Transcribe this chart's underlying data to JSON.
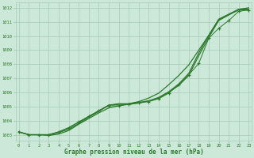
{
  "xlabel": "Graphe pression niveau de la mer (hPa)",
  "x": [
    0,
    1,
    2,
    3,
    4,
    5,
    6,
    7,
    8,
    9,
    10,
    11,
    12,
    13,
    14,
    15,
    16,
    17,
    18,
    19,
    20,
    21,
    22,
    23
  ],
  "line1": [
    1003.2,
    1003.0,
    1003.0,
    1003.0,
    1003.2,
    1003.5,
    1003.9,
    1004.3,
    1004.7,
    1005.1,
    1005.2,
    1005.2,
    1005.3,
    1005.4,
    1005.6,
    1006.0,
    1006.5,
    1007.2,
    1008.6,
    1009.9,
    1011.1,
    1011.5,
    1011.85,
    1011.85
  ],
  "line2": [
    1003.2,
    1003.0,
    1003.0,
    1003.0,
    1003.15,
    1003.4,
    1003.8,
    1004.25,
    1004.65,
    1005.1,
    1005.15,
    1005.15,
    1005.25,
    1005.4,
    1005.65,
    1006.05,
    1006.6,
    1007.35,
    1008.8,
    1010.05,
    1011.2,
    1011.55,
    1011.9,
    1011.9
  ],
  "line3": [
    1003.2,
    1003.0,
    1003.0,
    1002.95,
    1003.05,
    1003.3,
    1003.75,
    1004.15,
    1004.55,
    1004.9,
    1005.05,
    1005.2,
    1005.35,
    1005.6,
    1005.95,
    1006.55,
    1007.2,
    1007.95,
    1009.0,
    1010.05,
    1011.15,
    1011.5,
    1011.9,
    1012.0
  ],
  "line_marked": [
    1003.2,
    1003.0,
    1003.0,
    1003.0,
    1003.2,
    1003.5,
    1003.9,
    1004.3,
    1004.7,
    1005.05,
    1005.05,
    1005.15,
    1005.25,
    1005.35,
    1005.55,
    1005.95,
    1006.55,
    1007.25,
    1008.05,
    1009.85,
    1010.55,
    1011.1,
    1011.75,
    1011.85
  ],
  "line_color": "#2d7a2d",
  "bg_color": "#cce8d8",
  "grid_color": "#a8cbb8",
  "tick_label_color": "#2d7a2d",
  "xlabel_color": "#2d7a2d",
  "ylim": [
    1002.6,
    1012.4
  ],
  "yticks": [
    1003,
    1004,
    1005,
    1006,
    1007,
    1008,
    1009,
    1010,
    1011,
    1012
  ],
  "xticks": [
    0,
    1,
    2,
    3,
    4,
    5,
    6,
    7,
    8,
    9,
    10,
    11,
    12,
    13,
    14,
    15,
    16,
    17,
    18,
    19,
    20,
    21,
    22,
    23
  ]
}
